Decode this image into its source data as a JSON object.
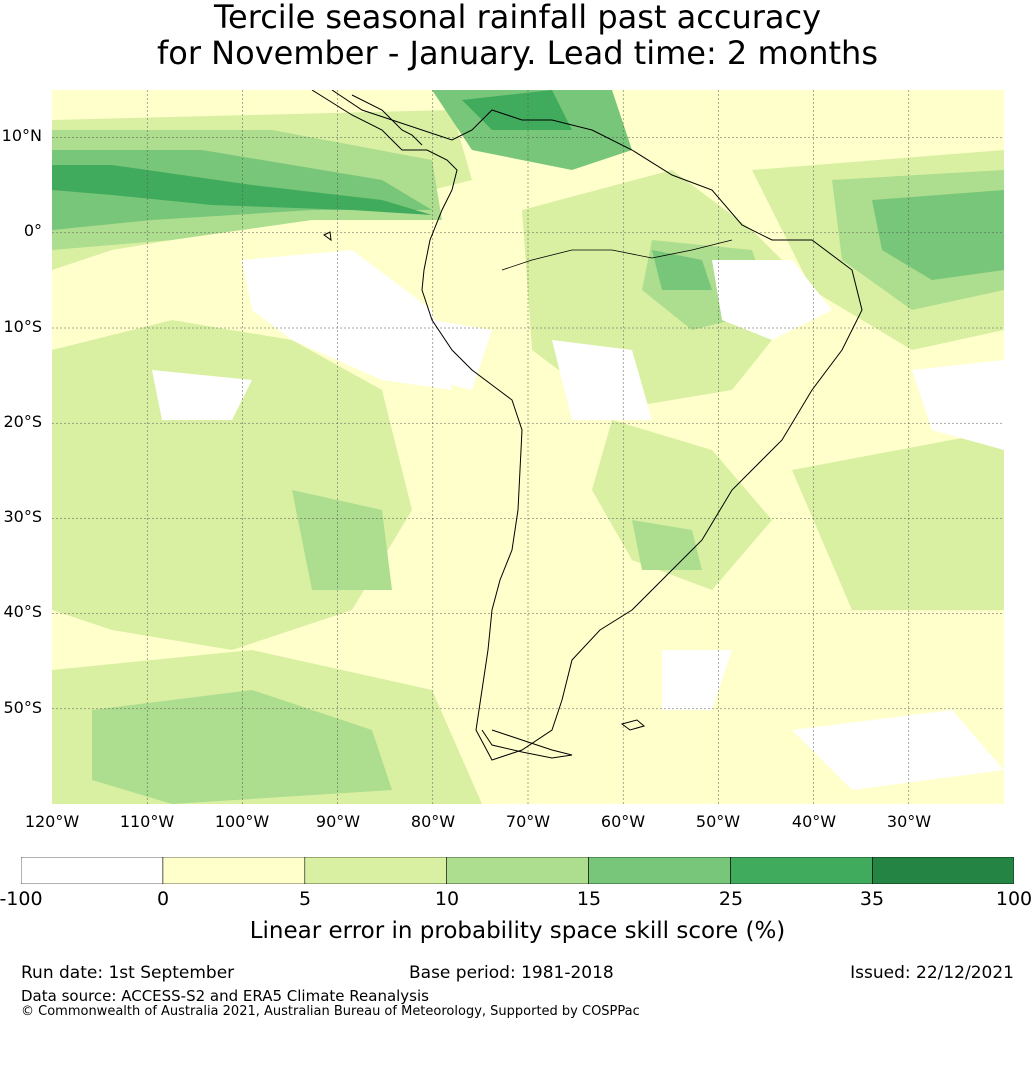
{
  "title_line1": "Tercile seasonal rainfall past accuracy",
  "title_line2": "for November - January. Lead time: 2 months",
  "map": {
    "longitude_labels": [
      "120°W",
      "110°W",
      "100°W",
      "90°W",
      "80°W",
      "70°W",
      "60°W",
      "50°W",
      "40°W",
      "30°W"
    ],
    "latitude_labels": [
      "10°N",
      "0°",
      "10°S",
      "20°S",
      "30°S",
      "40°S",
      "50°S"
    ],
    "extent": {
      "lon_min": -120,
      "lon_max": -20,
      "lat_min": -60,
      "lat_max": 15
    }
  },
  "colorbar": {
    "ticks": [
      "-100",
      "0",
      "5",
      "10",
      "15",
      "25",
      "35",
      "100"
    ],
    "colors": [
      "#ffffff",
      "#ffffcc",
      "#d9f0a3",
      "#addd8e",
      "#78c679",
      "#41ab5d",
      "#238443"
    ],
    "label": "Linear error in probability space skill score (%)"
  },
  "footer": {
    "run_date": "Run date: 1st September",
    "base_period": "Base period: 1981-2018",
    "issued": "Issued: 22/12/2021",
    "data_source": "Data source: ACCESS-S2 and ERA5 Climate Reanalysis",
    "copyright": "© Commonwealth of Australia 2021, Australian Bureau of Meteorology, Supported by COSPPac"
  }
}
